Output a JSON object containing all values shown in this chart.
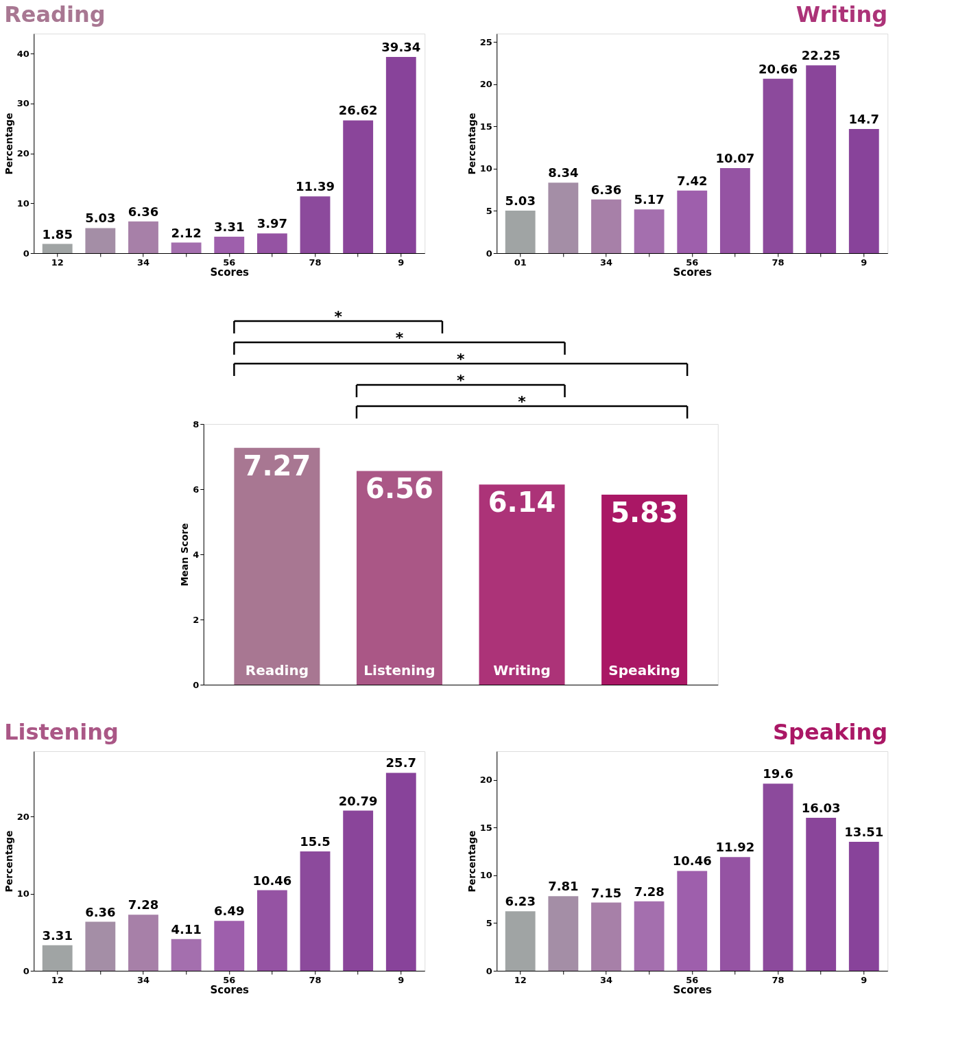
{
  "chart_data": [
    {
      "type": "bar",
      "title": "Reading",
      "xlabel": "Scores",
      "ylabel": "Percentage",
      "categories": [
        "12",
        null,
        "34",
        null,
        "56",
        null,
        "78",
        null,
        "9"
      ],
      "values": [
        1.85,
        5.03,
        6.36,
        2.12,
        3.31,
        3.97,
        11.39,
        26.62,
        39.34
      ],
      "colors": [
        "#a0a4a4",
        "#a48ea6",
        "#a780a8",
        "#a46fae",
        "#9e5fac",
        "#9553a3",
        "#8c4a9c",
        "#8a459a",
        "#88439a"
      ],
      "ylim": [
        0,
        44
      ],
      "yticks": [
        0,
        10,
        20,
        30,
        40
      ],
      "data_labels": true
    },
    {
      "type": "bar",
      "title": "Writing",
      "xlabel": "Scores",
      "ylabel": "Percentage",
      "categories": [
        "01",
        null,
        "34",
        null,
        "56",
        null,
        "78",
        null,
        "9"
      ],
      "values": [
        5.03,
        8.34,
        6.36,
        5.17,
        7.42,
        10.07,
        20.66,
        22.25,
        14.7
      ],
      "colors": [
        "#a0a4a4",
        "#a48ea6",
        "#a780a8",
        "#a46fae",
        "#9e5fac",
        "#9553a3",
        "#8c4a9c",
        "#8a459a",
        "#88439a"
      ],
      "ylim": [
        0,
        26
      ],
      "yticks": [
        0,
        5,
        10,
        15,
        20,
        25
      ],
      "data_labels": true
    },
    {
      "type": "bar",
      "ylabel": "Mean Score",
      "categories": [
        "Reading",
        "Listening",
        "Writing",
        "Speaking"
      ],
      "values": [
        7.27,
        6.56,
        6.14,
        5.83
      ],
      "colors": [
        "#a87792",
        "#aa5786",
        "#ac3378",
        "#aa1765"
      ],
      "ylim": [
        0,
        8
      ],
      "yticks": [
        0,
        2,
        4,
        6,
        8
      ],
      "data_labels": true,
      "tick_labels": "y",
      "annotations": [
        "*",
        "*",
        "*",
        "*",
        "*"
      ]
    },
    {
      "type": "bar",
      "title": "Listening",
      "xlabel": "Scores",
      "ylabel": "Percentage",
      "categories": [
        "12",
        null,
        "34",
        null,
        "56",
        null,
        "78",
        null,
        "9"
      ],
      "values": [
        3.31,
        6.36,
        7.28,
        4.11,
        6.49,
        10.46,
        15.5,
        20.79,
        25.7
      ],
      "colors": [
        "#a0a4a4",
        "#a48ea6",
        "#a780a8",
        "#a46fae",
        "#9e5fac",
        "#9553a3",
        "#8c4a9c",
        "#8a459a",
        "#88439a"
      ],
      "ylim": [
        0,
        28.5
      ],
      "yticks": [
        0,
        10,
        20
      ],
      "data_labels": true
    },
    {
      "type": "bar",
      "title": "Speaking",
      "xlabel": "Scores",
      "ylabel": "Percentage",
      "categories": [
        "12",
        null,
        "34",
        null,
        "56",
        null,
        "78",
        null,
        "9"
      ],
      "values": [
        6.23,
        7.81,
        7.15,
        7.28,
        10.46,
        11.92,
        19.6,
        16.03,
        13.51
      ],
      "colors": [
        "#a0a4a4",
        "#a48ea6",
        "#a780a8",
        "#a46fae",
        "#9e5fac",
        "#9553a3",
        "#8c4a9c",
        "#8a459a",
        "#88439a"
      ],
      "ylim": [
        0,
        23
      ],
      "yticks": [
        0,
        5,
        10,
        15,
        20
      ],
      "data_labels": true
    }
  ]
}
